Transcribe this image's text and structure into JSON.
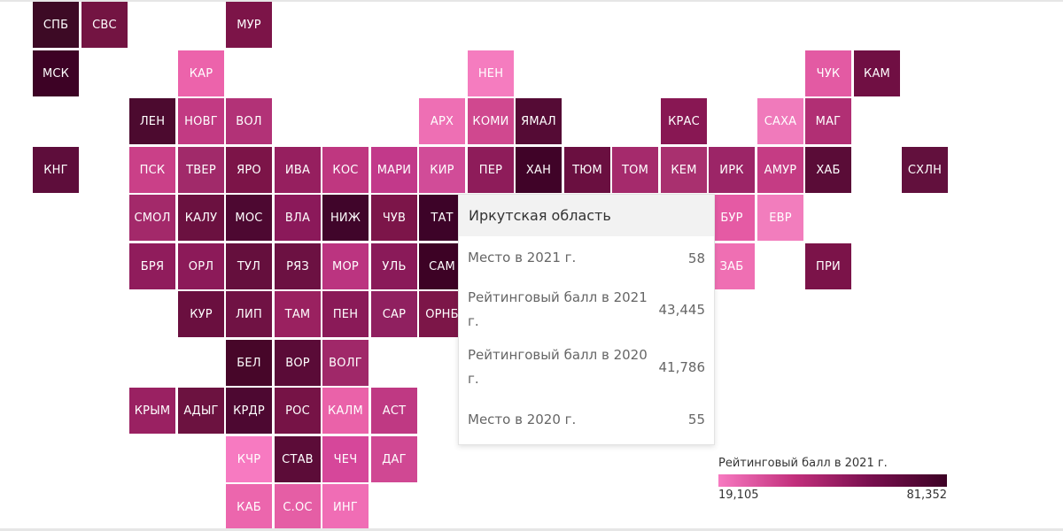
{
  "map": {
    "regions": [
      {
        "code": "СПБ",
        "row": 0,
        "col": 0,
        "color": "#3d0a25"
      },
      {
        "code": "СВС",
        "row": 0,
        "col": 1,
        "color": "#731442"
      },
      {
        "code": "МУР",
        "row": 0,
        "col": 4,
        "color": "#7c1448"
      },
      {
        "code": "МСК",
        "row": 1,
        "col": 0,
        "color": "#3d0225"
      },
      {
        "code": "КАР",
        "row": 1,
        "col": 3,
        "color": "#ec63ab"
      },
      {
        "code": "НЕН",
        "row": 1,
        "col": 9,
        "color": "#f57cbf"
      },
      {
        "code": "ЧУК",
        "row": 1,
        "col": 16,
        "color": "#e35aa3"
      },
      {
        "code": "КАМ",
        "row": 1,
        "col": 17,
        "color": "#700f43"
      },
      {
        "code": "ЛЕН",
        "row": 2,
        "col": 2,
        "color": "#4c0a2f"
      },
      {
        "code": "НОВГ",
        "row": 2,
        "col": 3,
        "color": "#c23a83"
      },
      {
        "code": "ВОЛ",
        "row": 2,
        "col": 4,
        "color": "#b23277"
      },
      {
        "code": "АРХ",
        "row": 2,
        "col": 8,
        "color": "#ee6fb4"
      },
      {
        "code": "КОМИ",
        "row": 2,
        "col": 9,
        "color": "#d0488f"
      },
      {
        "code": "ЯМАЛ",
        "row": 2,
        "col": 10,
        "color": "#550b35"
      },
      {
        "code": "КРАС",
        "row": 2,
        "col": 13,
        "color": "#881753"
      },
      {
        "code": "САХА",
        "row": 2,
        "col": 15,
        "color": "#f07abb"
      },
      {
        "code": "МАГ",
        "row": 2,
        "col": 16,
        "color": "#b12f74"
      },
      {
        "code": "КНГ",
        "row": 3,
        "col": 0,
        "color": "#5e0d3b"
      },
      {
        "code": "ПСК",
        "row": 3,
        "col": 2,
        "color": "#ca4088"
      },
      {
        "code": "ТВЕР",
        "row": 3,
        "col": 3,
        "color": "#a12a6a"
      },
      {
        "code": "ЯРО",
        "row": 3,
        "col": 4,
        "color": "#7c1448"
      },
      {
        "code": "ИВА",
        "row": 3,
        "col": 5,
        "color": "#961f5f"
      },
      {
        "code": "КОС",
        "row": 3,
        "col": 6,
        "color": "#bf3780"
      },
      {
        "code": "МАРИ",
        "row": 3,
        "col": 7,
        "color": "#c2398a"
      },
      {
        "code": "КИР",
        "row": 3,
        "col": 8,
        "color": "#d14c98"
      },
      {
        "code": "ПЕР",
        "row": 3,
        "col": 9,
        "color": "#8e1c5a"
      },
      {
        "code": "ХАН",
        "row": 3,
        "col": 10,
        "color": "#400328"
      },
      {
        "code": "ТЮМ",
        "row": 3,
        "col": 11,
        "color": "#6a0f40"
      },
      {
        "code": "ТОМ",
        "row": 3,
        "col": 12,
        "color": "#a52a6c"
      },
      {
        "code": "КЕМ",
        "row": 3,
        "col": 13,
        "color": "#a9306f"
      },
      {
        "code": "ИРК",
        "row": 3,
        "col": 14,
        "color": "#9c2567"
      },
      {
        "code": "АМУР",
        "row": 3,
        "col": 15,
        "color": "#c53c84"
      },
      {
        "code": "ХАБ",
        "row": 3,
        "col": 16,
        "color": "#5a0c37"
      },
      {
        "code": "СХЛН",
        "row": 3,
        "col": 18,
        "color": "#62103d"
      },
      {
        "code": "СМОЛ",
        "row": 4,
        "col": 2,
        "color": "#a3296a"
      },
      {
        "code": "КАЛУ",
        "row": 4,
        "col": 3,
        "color": "#6b1140"
      },
      {
        "code": "МОС",
        "row": 4,
        "col": 4,
        "color": "#4d0831"
      },
      {
        "code": "ВЛА",
        "row": 4,
        "col": 5,
        "color": "#8b195a"
      },
      {
        "code": "НИЖ",
        "row": 4,
        "col": 6,
        "color": "#40052a"
      },
      {
        "code": "ЧУВ",
        "row": 4,
        "col": 7,
        "color": "#7c1549"
      },
      {
        "code": "ТАТ",
        "row": 4,
        "col": 8,
        "color": "#3d0328"
      },
      {
        "code": "БУР",
        "row": 4,
        "col": 14,
        "color": "#e55aa4"
      },
      {
        "code": "ЕВР",
        "row": 4,
        "col": 15,
        "color": "#f27dbd"
      },
      {
        "code": "БРЯ",
        "row": 5,
        "col": 2,
        "color": "#901c5c"
      },
      {
        "code": "ОРЛ",
        "row": 5,
        "col": 3,
        "color": "#8c1a59"
      },
      {
        "code": "ТУЛ",
        "row": 5,
        "col": 4,
        "color": "#650f3d"
      },
      {
        "code": "РЯЗ",
        "row": 5,
        "col": 5,
        "color": "#6c1142"
      },
      {
        "code": "МОР",
        "row": 5,
        "col": 6,
        "color": "#bb3480"
      },
      {
        "code": "УЛЬ",
        "row": 5,
        "col": 7,
        "color": "#8a1a59"
      },
      {
        "code": "САМ",
        "row": 5,
        "col": 8,
        "color": "#3d0225"
      },
      {
        "code": "ЗАБ",
        "row": 5,
        "col": 14,
        "color": "#ef6fb3"
      },
      {
        "code": "ПРИ",
        "row": 5,
        "col": 16,
        "color": "#7b1349"
      },
      {
        "code": "КУР",
        "row": 6,
        "col": 3,
        "color": "#6a0f3f"
      },
      {
        "code": "ЛИП",
        "row": 6,
        "col": 4,
        "color": "#701244"
      },
      {
        "code": "ТАМ",
        "row": 6,
        "col": 5,
        "color": "#9a2160"
      },
      {
        "code": "ПЕН",
        "row": 6,
        "col": 6,
        "color": "#8a1a58"
      },
      {
        "code": "САР",
        "row": 6,
        "col": 7,
        "color": "#902060"
      },
      {
        "code": "ОРНБ",
        "row": 6,
        "col": 8,
        "color": "#7c1648"
      },
      {
        "code": "БЕЛ",
        "row": 7,
        "col": 4,
        "color": "#470629"
      },
      {
        "code": "ВОР",
        "row": 7,
        "col": 5,
        "color": "#5a0b37"
      },
      {
        "code": "ВОЛГ",
        "row": 7,
        "col": 6,
        "color": "#a02869"
      },
      {
        "code": "КРЫМ",
        "row": 8,
        "col": 2,
        "color": "#9a2162"
      },
      {
        "code": "АДЫГ",
        "row": 8,
        "col": 3,
        "color": "#6c1240"
      },
      {
        "code": "КРДР",
        "row": 8,
        "col": 4,
        "color": "#4d0831"
      },
      {
        "code": "РОС",
        "row": 8,
        "col": 5,
        "color": "#761346"
      },
      {
        "code": "КАЛМ",
        "row": 8,
        "col": 6,
        "color": "#ea62a9"
      },
      {
        "code": "АСТ",
        "row": 8,
        "col": 7,
        "color": "#bf3983"
      },
      {
        "code": "КЧР",
        "row": 9,
        "col": 4,
        "color": "#f77ac1"
      },
      {
        "code": "СТАВ",
        "row": 9,
        "col": 5,
        "color": "#5c0c38"
      },
      {
        "code": "ЧЕЧ",
        "row": 9,
        "col": 6,
        "color": "#d6479a"
      },
      {
        "code": "ДАГ",
        "row": 9,
        "col": 7,
        "color": "#d04893"
      },
      {
        "code": "КАБ",
        "row": 10,
        "col": 4,
        "color": "#ec66ad"
      },
      {
        "code": "С.ОС",
        "row": 10,
        "col": 5,
        "color": "#e55ea5"
      },
      {
        "code": "ИНГ",
        "row": 10,
        "col": 6,
        "color": "#f06db5"
      }
    ]
  },
  "tooltip": {
    "region_name": "Иркутская область",
    "rows": [
      {
        "label": "Место в 2021 г.",
        "value": "58"
      },
      {
        "label": "Рейтинговый балл в 2021 г.",
        "value": "43,445"
      },
      {
        "label": "Рейтинговый балл в 2020 г.",
        "value": "41,786"
      },
      {
        "label": "Место в 2020 г.",
        "value": "55"
      }
    ]
  },
  "legend": {
    "title": "Рейтинговый балл в 2021 г.",
    "min_label": "19,105",
    "max_label": "81,352",
    "color_min": "#f77ac1",
    "color_max": "#3d0225"
  }
}
